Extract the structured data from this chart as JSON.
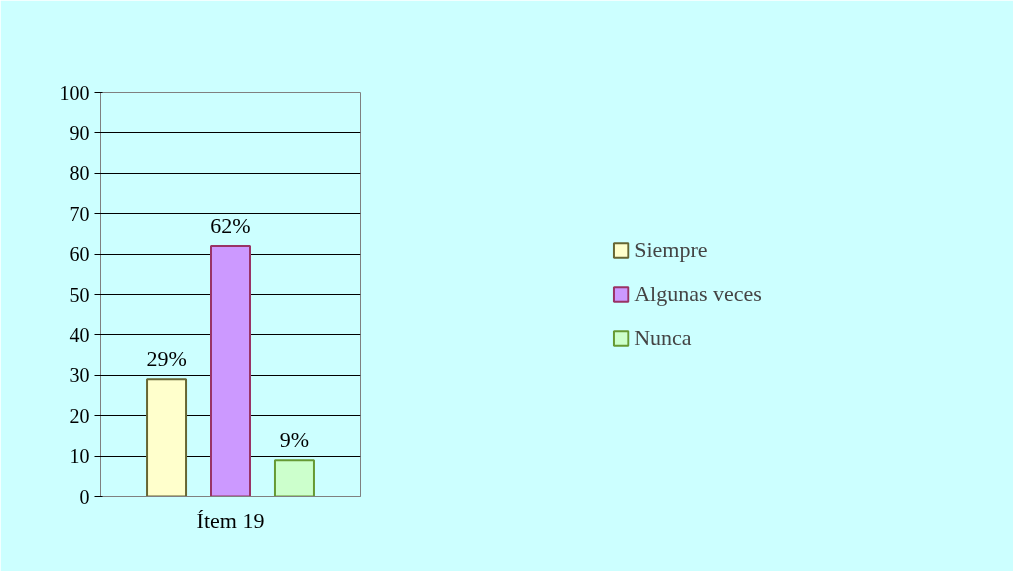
{
  "chart_data": {
    "type": "bar",
    "categories": [
      "Ítem 19"
    ],
    "series": [
      {
        "name": "Siempre",
        "color": "#ffffcc",
        "values": [
          29
        ],
        "value_labels": [
          "29%"
        ]
      },
      {
        "name": "Algunas veces",
        "color": "#cc99ff",
        "values": [
          62
        ],
        "value_labels": [
          "62%"
        ]
      },
      {
        "name": "Nunca",
        "color": "#ccffcc",
        "values": [
          9
        ],
        "value_labels": [
          "9%"
        ]
      }
    ],
    "ylim": [
      0,
      100
    ],
    "yticks": [
      0,
      10,
      20,
      30,
      40,
      50,
      60,
      70,
      80,
      90,
      100
    ],
    "grid": "y",
    "legend": "right"
  }
}
